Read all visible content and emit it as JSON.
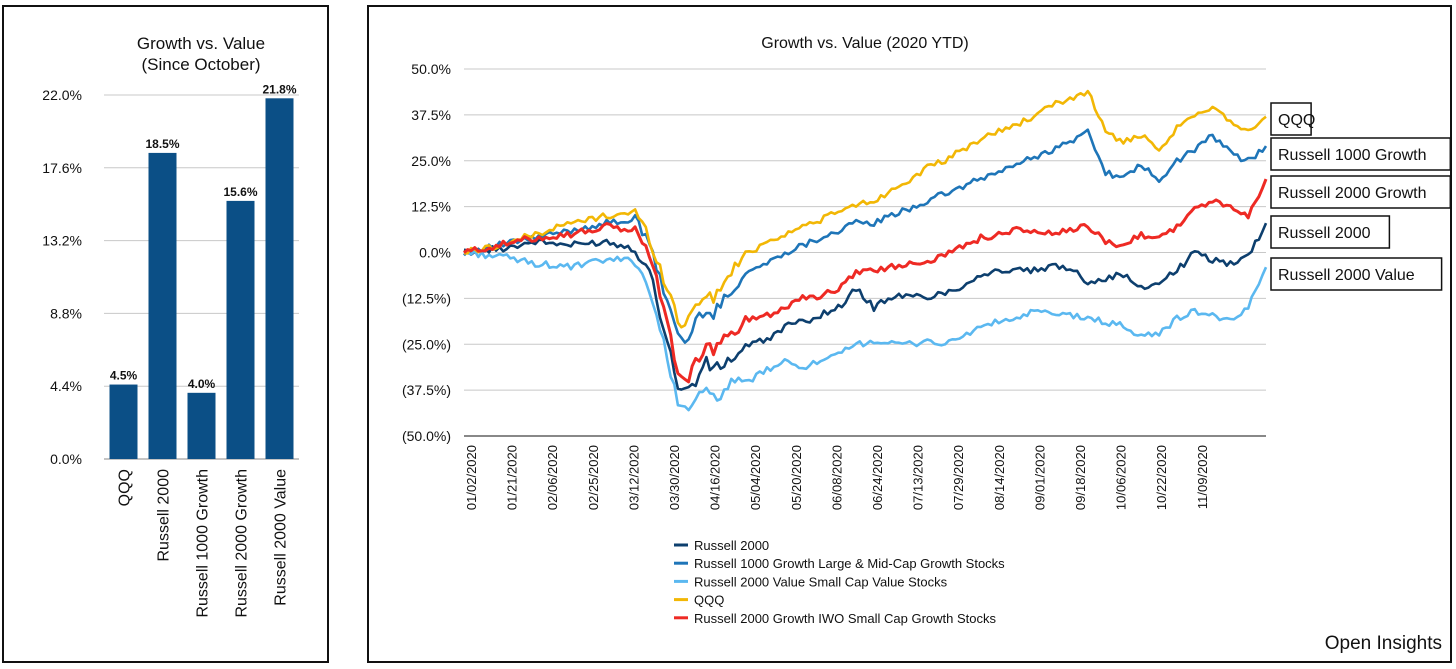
{
  "brand": "Open Insights",
  "chart_data": [
    {
      "type": "bar",
      "title": [
        "Growth vs. Value",
        "(Since October)"
      ],
      "categories": [
        "QQQ",
        "Russell 2000",
        "Russell 1000 Growth",
        "Russell 2000 Growth",
        "Russell 2000 Value"
      ],
      "values": [
        4.5,
        18.5,
        4.0,
        15.6,
        21.8
      ],
      "data_labels": [
        "4.5%",
        "18.5%",
        "4.0%",
        "15.6%",
        "21.8%"
      ],
      "yticks": [
        "0.0%",
        "4.4%",
        "8.8%",
        "13.2%",
        "17.6%",
        "22.0%"
      ],
      "ytick_values": [
        0,
        4.4,
        8.8,
        13.2,
        17.6,
        22.0
      ],
      "ylim": [
        0,
        22.0
      ],
      "bar_color": "#0B4F86",
      "grid": true
    },
    {
      "type": "line",
      "title": "Growth vs. Value (2020 YTD)",
      "xticks": [
        "01/02/2020",
        "01/21/2020",
        "02/06/2020",
        "02/25/2020",
        "03/12/2020",
        "03/30/2020",
        "04/16/2020",
        "05/04/2020",
        "05/20/2020",
        "06/08/2020",
        "06/24/2020",
        "07/13/2020",
        "07/29/2020",
        "08/14/2020",
        "09/01/2020",
        "09/18/2020",
        "10/06/2020",
        "10/22/2020",
        "11/09/2020"
      ],
      "yticks": [
        "50.0%",
        "37.5%",
        "25.0%",
        "12.5%",
        "0.0%",
        "(12.5%)",
        "(25.0%)",
        "(37.5%)",
        "(50.0%)"
      ],
      "ytick_values": [
        50,
        37.5,
        25,
        12.5,
        0,
        -12.5,
        -25,
        -37.5,
        -50
      ],
      "ylim": [
        -50,
        50
      ],
      "x_index_range": [
        0,
        225
      ],
      "series": [
        {
          "name": "Russell 2000",
          "legend": "Russell 2000",
          "end_label": "Russell 2000",
          "color": "#0D3F6E",
          "x": [
            0,
            10,
            20,
            30,
            40,
            48,
            52,
            56,
            60,
            62,
            65,
            68,
            70,
            75,
            80,
            85,
            90,
            95,
            100,
            105,
            110,
            115,
            120,
            125,
            130,
            135,
            140,
            145,
            150,
            155,
            160,
            165,
            170,
            175,
            180,
            185,
            190,
            195,
            200,
            205,
            210,
            215,
            220,
            225
          ],
          "values": [
            0,
            1,
            3,
            2,
            3,
            1,
            -5,
            -20,
            -36,
            -38,
            -35,
            -30,
            -32,
            -29,
            -25,
            -24,
            -20,
            -19,
            -17,
            -15,
            -10,
            -15,
            -12,
            -12,
            -12,
            -11,
            -9,
            -6,
            -5,
            -5,
            -5,
            -4,
            -4,
            -8,
            -7,
            -6,
            -10,
            -8,
            -5,
            0,
            -2,
            -3,
            -1,
            8
          ]
        },
        {
          "name": "Russell 1000 Growth",
          "legend": "Russell 1000 Growth Large & Mid-Cap Growth Stocks",
          "end_label": "Russell 1000 Growth",
          "color": "#1E75B8",
          "x": [
            0,
            10,
            20,
            30,
            40,
            48,
            52,
            56,
            60,
            62,
            65,
            68,
            70,
            75,
            80,
            85,
            90,
            95,
            100,
            105,
            110,
            115,
            120,
            125,
            130,
            135,
            140,
            145,
            150,
            155,
            160,
            165,
            170,
            175,
            180,
            185,
            190,
            195,
            200,
            205,
            210,
            215,
            220,
            225
          ],
          "values": [
            0,
            2,
            4,
            6,
            8,
            9,
            2,
            -10,
            -22,
            -25,
            -19,
            -15,
            -17,
            -10,
            -5,
            -3,
            0,
            2,
            4,
            6,
            8,
            8,
            10,
            12,
            14,
            16,
            18,
            20,
            22,
            24,
            26,
            28,
            30,
            33,
            22,
            20,
            24,
            19,
            25,
            28,
            32,
            27,
            25,
            29
          ]
        },
        {
          "name": "Russell 2000 Value",
          "legend": "Russell 2000 Value Small Cap Value Stocks",
          "end_label": "Russell 2000 Value",
          "color": "#5BB8F0",
          "x": [
            0,
            10,
            20,
            30,
            40,
            48,
            52,
            56,
            60,
            62,
            65,
            68,
            70,
            75,
            80,
            85,
            90,
            95,
            100,
            105,
            110,
            115,
            120,
            125,
            130,
            135,
            140,
            145,
            150,
            155,
            160,
            165,
            170,
            175,
            180,
            185,
            190,
            195,
            200,
            205,
            210,
            215,
            220,
            225
          ],
          "values": [
            0,
            -1,
            -3,
            -4,
            -2,
            -2,
            -10,
            -25,
            -40,
            -43,
            -40,
            -38,
            -40,
            -36,
            -35,
            -32,
            -30,
            -31,
            -30,
            -28,
            -25,
            -24,
            -25,
            -25,
            -24,
            -25,
            -23,
            -20,
            -19,
            -18,
            -16,
            -17,
            -17,
            -18,
            -19,
            -20,
            -23,
            -22,
            -18,
            -16,
            -17,
            -19,
            -15,
            -4
          ]
        },
        {
          "name": "QQQ",
          "legend": "QQQ",
          "end_label": "QQQ",
          "color": "#F2B705",
          "x": [
            0,
            10,
            20,
            30,
            40,
            48,
            52,
            56,
            60,
            62,
            65,
            68,
            70,
            75,
            80,
            85,
            90,
            95,
            100,
            105,
            110,
            115,
            120,
            125,
            130,
            135,
            140,
            145,
            150,
            155,
            160,
            165,
            170,
            175,
            180,
            185,
            190,
            195,
            200,
            205,
            210,
            215,
            220,
            225
          ],
          "values": [
            0,
            2,
            5,
            8,
            10,
            11,
            4,
            -7,
            -18,
            -20,
            -14,
            -11,
            -13,
            -5,
            0,
            3,
            5,
            7,
            9,
            11,
            13,
            14,
            17,
            20,
            23,
            25,
            28,
            31,
            33,
            35,
            37,
            40,
            42,
            44,
            33,
            30,
            32,
            27,
            34,
            37,
            40,
            36,
            33,
            37
          ]
        },
        {
          "name": "Russell 2000 Growth",
          "legend": "Russell 2000 Growth IWO Small Cap Growth Stocks",
          "end_label": "Russell 2000 Growth",
          "color": "#EE2A24",
          "x": [
            0,
            10,
            20,
            30,
            40,
            48,
            52,
            56,
            60,
            62,
            65,
            68,
            70,
            75,
            80,
            85,
            90,
            95,
            100,
            105,
            110,
            115,
            120,
            125,
            130,
            135,
            140,
            145,
            150,
            155,
            160,
            165,
            170,
            175,
            180,
            185,
            190,
            195,
            200,
            205,
            210,
            215,
            220,
            225
          ],
          "values": [
            0,
            2,
            4,
            5,
            7,
            6,
            0,
            -15,
            -32,
            -36,
            -30,
            -25,
            -27,
            -22,
            -18,
            -17,
            -15,
            -12,
            -12,
            -10,
            -5,
            -5,
            -4,
            -3,
            -2,
            -1,
            2,
            4,
            5,
            6,
            6,
            5,
            6,
            7,
            3,
            2,
            5,
            4,
            7,
            12,
            14,
            12,
            10,
            20
          ]
        }
      ]
    }
  ]
}
